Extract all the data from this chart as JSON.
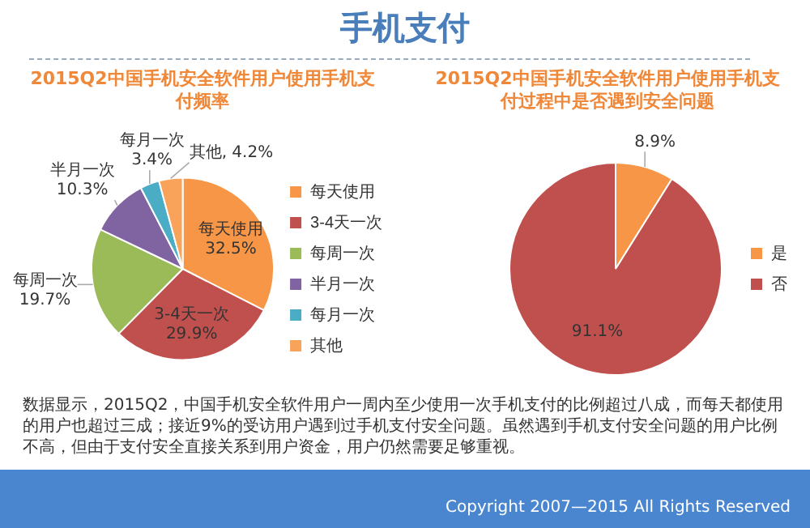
{
  "chart_data": [
    {
      "type": "pie",
      "title": "2015Q2中国手机安全软件用户使用手机支付频率",
      "categories": [
        "每天使用",
        "3-4天一次",
        "每周一次",
        "半月一次",
        "每月一次",
        "其他"
      ],
      "values": [
        32.5,
        29.9,
        19.7,
        10.3,
        3.4,
        4.2
      ],
      "colors": [
        "#f79646",
        "#c0504d",
        "#9bbb59",
        "#8064a2",
        "#4bacc6",
        "#f9a25a"
      ],
      "value_labels": [
        "每天使用\n32.5%",
        "3-4天一次\n29.9%",
        "每周一次\n19.7%",
        "半月一次\n10.3%",
        "每月一次\n3.4%",
        "其他, 4.2%"
      ],
      "legend": "right",
      "annotations": [
        "手机支付",
        "数据显示，2015Q2，中国手机安全软件用户一周内至少使用一次手机支付的比例超过八成，而每天都使用的用户也超过三成；接近9%的受访用户遇到过手机支付安全问题。虽然遇到手机支付安全问题的用户比例不高，但由于支付安全直接关系到用户资金，用户仍然需要足够重视。",
        "Copyright 2007—2015 All Rights Reserved"
      ]
    },
    {
      "type": "pie",
      "title": "2015Q2中国手机安全软件用户使用手机支付过程中是否遇到安全问题",
      "categories": [
        "是",
        "否"
      ],
      "values": [
        8.9,
        91.1
      ],
      "colors": [
        "#f79646",
        "#c0504d"
      ],
      "value_labels": [
        "8.9%",
        "91.1%"
      ],
      "legend": "right"
    }
  ]
}
